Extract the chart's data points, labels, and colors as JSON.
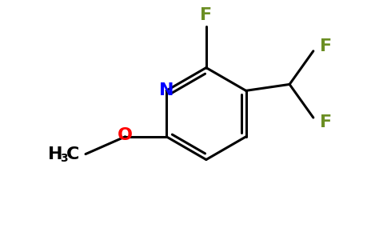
{
  "background_color": "#ffffff",
  "atom_colors": {
    "C": "#000000",
    "N": "#0000ff",
    "O": "#ff0000",
    "F": "#6b8e23"
  },
  "bond_color": "#000000",
  "bond_width": 2.2,
  "font_size_atom": 15,
  "font_size_subscript": 10,
  "figsize": [
    4.84,
    3.0
  ],
  "dpi": 100
}
